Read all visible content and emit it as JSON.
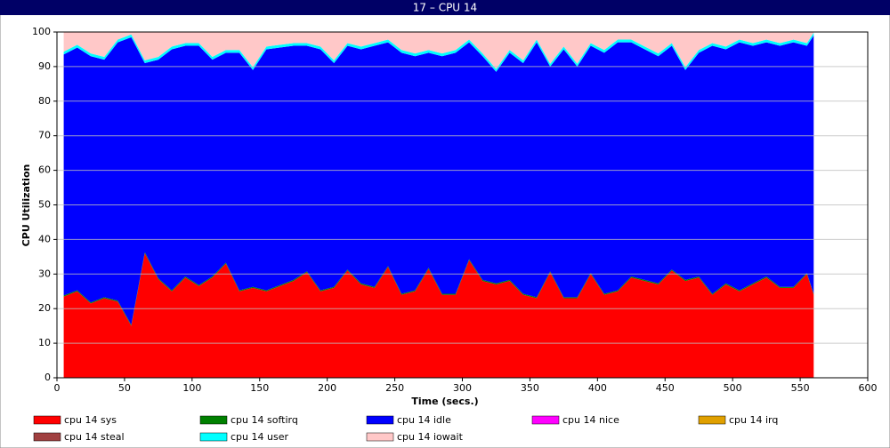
{
  "chart_data": {
    "type": "stacked_area",
    "title": "17 – CPU 14",
    "x_label": "Time (secs.)",
    "y_label": "CPU Utilization",
    "x": [
      5,
      15,
      25,
      35,
      45,
      55,
      65,
      75,
      85,
      95,
      105,
      115,
      125,
      135,
      145,
      155,
      165,
      175,
      185,
      195,
      205,
      215,
      225,
      235,
      245,
      255,
      265,
      275,
      285,
      295,
      305,
      315,
      325,
      335,
      345,
      355,
      365,
      375,
      385,
      395,
      405,
      415,
      425,
      435,
      445,
      455,
      465,
      475,
      485,
      495,
      505,
      515,
      525,
      535,
      545,
      555,
      560
    ],
    "series": [
      {
        "name": "cpu 14 sys",
        "color": "#ff0000",
        "values": [
          23.5,
          25,
          21.5,
          23,
          22,
          15,
          36,
          28.5,
          25,
          29,
          26.5,
          29,
          33,
          25,
          26,
          25,
          26.5,
          28,
          30.5,
          25,
          26,
          31,
          27,
          26,
          32,
          24,
          25,
          31.5,
          24,
          24,
          34,
          28,
          27,
          28,
          24,
          23,
          30.5,
          23,
          23,
          30,
          24,
          25,
          29,
          28,
          27,
          31,
          28,
          29,
          24,
          27,
          25,
          27,
          29,
          26,
          26,
          30,
          24
        ]
      },
      {
        "name": "cpu 14 softirq",
        "color": "#008000",
        "values": [
          0.3,
          0.3,
          0.3,
          0.3,
          0.3,
          0.3,
          0.3,
          0.3,
          0.3,
          0.3,
          0.3,
          0.3,
          0.3,
          0.3,
          0.3,
          0.3,
          0.3,
          0.3,
          0.3,
          0.3,
          0.3,
          0.3,
          0.3,
          0.3,
          0.3,
          0.3,
          0.3,
          0.3,
          0.3,
          0.3,
          0.3,
          0.3,
          0.3,
          0.3,
          0.3,
          0.3,
          0.3,
          0.3,
          0.3,
          0.3,
          0.3,
          0.3,
          0.3,
          0.3,
          0.3,
          0.3,
          0.3,
          0.3,
          0.3,
          0.3,
          0.3,
          0.3,
          0.3,
          0.3,
          0.3,
          0.3,
          0.3
        ]
      },
      {
        "name": "cpu 14 idle",
        "color": "#0000ff",
        "values": [
          69.7,
          70.2,
          71.2,
          68.7,
          74.7,
          83.2,
          54.7,
          63.2,
          69.7,
          66.7,
          69.2,
          62.7,
          60.7,
          68.7,
          62.7,
          69.7,
          68.7,
          67.7,
          65.2,
          69.7,
          64.7,
          64.7,
          67.7,
          69.7,
          64.7,
          69.7,
          67.7,
          62.2,
          68.7,
          69.7,
          62.7,
          64.7,
          61.2,
          65.7,
          66.7,
          73.7,
          59.2,
          71.7,
          66.7,
          65.7,
          69.7,
          71.7,
          67.7,
          66.7,
          65.7,
          64.7,
          60.7,
          64.7,
          71.7,
          67.7,
          71.7,
          68.7,
          67.7,
          69.7,
          70.7,
          65.7,
          74.7
        ]
      },
      {
        "name": "cpu 14 nice",
        "color": "#ff00ff",
        "values": [
          0,
          0,
          0,
          0,
          0,
          0,
          0,
          0,
          0,
          0,
          0,
          0,
          0,
          0,
          0,
          0,
          0,
          0,
          0,
          0,
          0,
          0,
          0,
          0,
          0,
          0,
          0,
          0,
          0,
          0,
          0,
          0,
          0,
          0,
          0,
          0,
          0,
          0,
          0,
          0,
          0,
          0,
          0,
          0,
          0,
          0,
          0,
          0,
          0,
          0,
          0,
          0,
          0,
          0,
          0,
          0,
          0
        ]
      },
      {
        "name": "cpu 14 irq",
        "color": "#e0a000",
        "values": [
          0,
          0,
          0,
          0,
          0,
          0,
          0,
          0,
          0,
          0,
          0,
          0,
          0,
          0,
          0,
          0,
          0,
          0,
          0,
          0,
          0,
          0,
          0,
          0,
          0,
          0,
          0,
          0,
          0,
          0,
          0,
          0,
          0,
          0,
          0,
          0,
          0,
          0,
          0,
          0,
          0,
          0,
          0,
          0,
          0,
          0,
          0,
          0,
          0,
          0,
          0,
          0,
          0,
          0,
          0,
          0,
          0
        ]
      },
      {
        "name": "cpu 14 steal",
        "color": "#a04040",
        "values": [
          0,
          0,
          0,
          0,
          0,
          0,
          0,
          0,
          0,
          0,
          0,
          0,
          0,
          0,
          0,
          0,
          0,
          0,
          0,
          0,
          0,
          0,
          0,
          0,
          0,
          0,
          0,
          0,
          0,
          0,
          0,
          0,
          0,
          0,
          0,
          0,
          0,
          0,
          0,
          0,
          0,
          0,
          0,
          0,
          0,
          0,
          0,
          0,
          0,
          0,
          0,
          0,
          0,
          0,
          0,
          0,
          0
        ]
      },
      {
        "name": "cpu 14 user",
        "color": "#00ffff",
        "values": [
          0.8,
          0.8,
          0.8,
          0.8,
          0.8,
          0.8,
          0.8,
          0.8,
          0.8,
          0.8,
          0.8,
          0.8,
          0.8,
          0.8,
          0.8,
          0.8,
          0.8,
          0.8,
          0.8,
          0.8,
          0.8,
          0.8,
          0.8,
          0.8,
          0.8,
          0.8,
          0.8,
          0.8,
          0.8,
          0.8,
          0.8,
          0.8,
          0.8,
          0.8,
          0.8,
          0.8,
          0.8,
          0.8,
          0.8,
          0.8,
          0.8,
          0.8,
          0.8,
          0.8,
          0.8,
          0.8,
          0.8,
          0.8,
          0.8,
          0.8,
          0.8,
          0.8,
          0.8,
          0.8,
          0.8,
          0.8,
          0.8
        ]
      },
      {
        "name": "cpu 14 iowait",
        "color": "#ffc8c8",
        "values": [
          5.7,
          3.7,
          6.2,
          7.2,
          2.2,
          0.7,
          8.2,
          7.2,
          4.2,
          3.2,
          3.2,
          7.2,
          5.2,
          5.2,
          10.2,
          4.2,
          3.7,
          3.2,
          3.2,
          4.2,
          8.2,
          3.2,
          4.2,
          3.2,
          2.2,
          5.2,
          6.2,
          5.2,
          6.2,
          5.2,
          2.2,
          6.2,
          10.7,
          5.2,
          8.2,
          2.2,
          9.2,
          4.2,
          9.2,
          3.2,
          5.2,
          2.2,
          2.2,
          4.2,
          6.2,
          3.2,
          10.2,
          5.2,
          3.2,
          4.2,
          2.2,
          3.2,
          2.2,
          3.2,
          2.2,
          3.2,
          0.2
        ]
      }
    ],
    "xlim": [
      0,
      600
    ],
    "xticks": [
      0,
      50,
      100,
      150,
      200,
      250,
      300,
      350,
      400,
      450,
      500,
      550,
      600
    ],
    "ylim": [
      0,
      100
    ],
    "yticks": [
      0,
      10,
      20,
      30,
      40,
      50,
      60,
      70,
      80,
      90,
      100
    ],
    "grid": true,
    "legend": "bottom"
  }
}
